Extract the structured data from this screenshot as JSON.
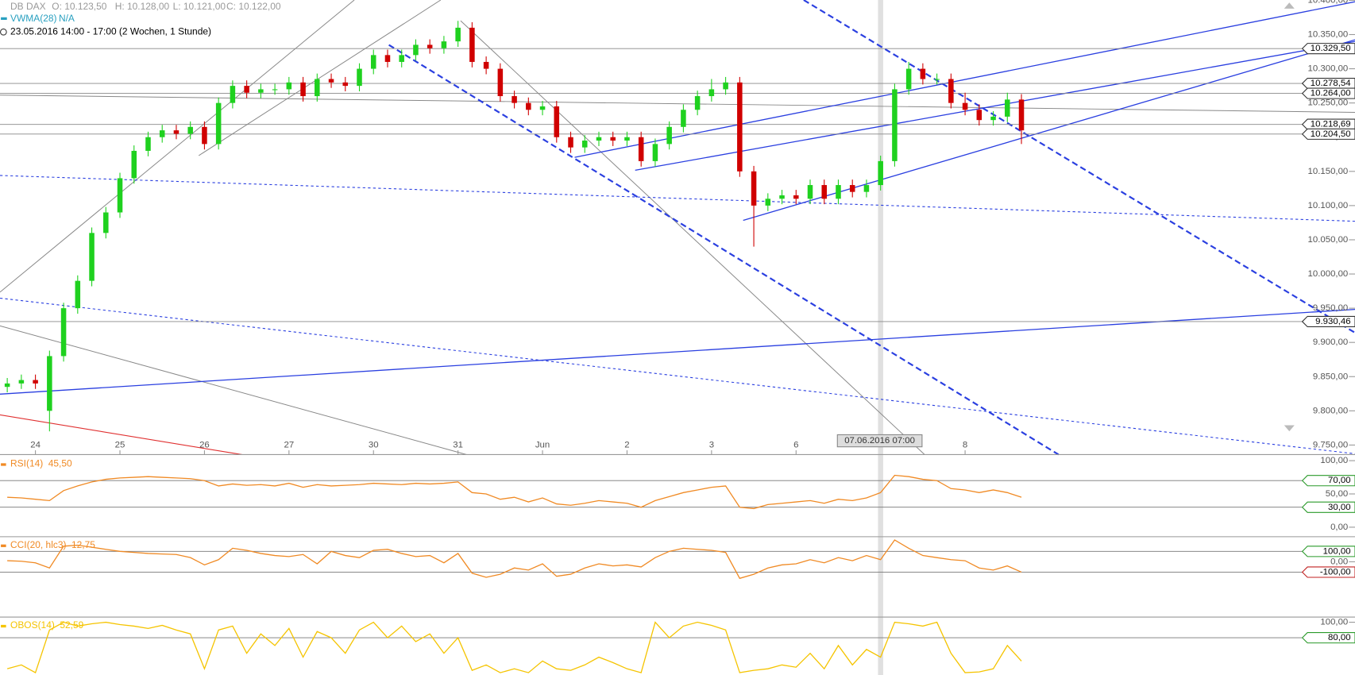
{
  "header": {
    "symbol": "DB DAX",
    "open": "O: 10.123,50",
    "high": "H: 10.128,00",
    "low": "L: 10.121,00",
    "close": "C: 10.122,00",
    "indicator": "VWMA(28)",
    "indicator_value": "N/A",
    "range": "23.05.2016 14:00 - 17:00 (2 Wochen, 1 Stunde)"
  },
  "chart_data": [
    {
      "type": "candlestick",
      "up_color": "#1fd11f",
      "down_color": "#d00000",
      "crosshair_label": "07.06.2016 07:00",
      "categories": [
        null,
        null,
        "24",
        null,
        null,
        null,
        null,
        null,
        "25",
        null,
        null,
        null,
        null,
        null,
        "26",
        null,
        null,
        null,
        null,
        null,
        "27",
        null,
        null,
        null,
        null,
        null,
        "30",
        null,
        null,
        null,
        null,
        null,
        "31",
        null,
        null,
        null,
        null,
        null,
        "Jun",
        null,
        null,
        null,
        null,
        null,
        "2",
        null,
        null,
        null,
        null,
        null,
        "3",
        null,
        null,
        null,
        null,
        null,
        "6",
        null,
        null,
        null,
        null,
        null,
        null,
        null,
        null,
        null,
        null,
        null,
        "8",
        null,
        null,
        null,
        null
      ],
      "open": [
        9835,
        9840,
        9845,
        9800,
        9880,
        9950,
        9990,
        10060,
        10090,
        10140,
        10180,
        10200,
        10210,
        10205,
        10215,
        10190,
        10250,
        10275,
        10265,
        10270,
        10270,
        10280,
        10260,
        10285,
        10280,
        10275,
        10300,
        10320,
        10310,
        10320,
        10335,
        10330,
        10340,
        10360,
        10310,
        10300,
        10260,
        10250,
        10240,
        10245,
        10200,
        10185,
        10195,
        10200,
        10195,
        10200,
        10165,
        10190,
        10215,
        10240,
        10260,
        10270,
        10280,
        10150,
        10100,
        10110,
        10115,
        10110,
        10130,
        10110,
        10130,
        10120,
        10130,
        10165,
        10270,
        10300,
        10285,
        10285,
        10250,
        10240,
        10225,
        10230,
        10255
      ],
      "high": [
        9848,
        9853,
        9853,
        9888,
        9958,
        9998,
        10068,
        10098,
        10148,
        10188,
        10208,
        10218,
        10218,
        10223,
        10223,
        10258,
        10283,
        10283,
        10278,
        10278,
        10288,
        10288,
        10293,
        10293,
        10288,
        10308,
        10328,
        10328,
        10328,
        10343,
        10343,
        10348,
        10370,
        10368,
        10318,
        10308,
        10268,
        10258,
        10253,
        10253,
        10208,
        10203,
        10208,
        10208,
        10208,
        10208,
        10198,
        10223,
        10248,
        10268,
        10285,
        10288,
        10288,
        10158,
        10118,
        10123,
        10123,
        10138,
        10138,
        10138,
        10138,
        10138,
        10173,
        10278,
        10310,
        10308,
        10293,
        10293,
        10265,
        10248,
        10238,
        10265,
        10263
      ],
      "low": [
        9827,
        9832,
        9832,
        9770,
        9872,
        9942,
        9982,
        10052,
        10082,
        10132,
        10172,
        10192,
        10197,
        10197,
        10182,
        10182,
        10242,
        10257,
        10257,
        10262,
        10262,
        10252,
        10252,
        10272,
        10267,
        10267,
        10292,
        10302,
        10302,
        10312,
        10322,
        10322,
        10332,
        10302,
        10292,
        10252,
        10242,
        10232,
        10232,
        10192,
        10177,
        10177,
        10187,
        10187,
        10187,
        10157,
        10157,
        10182,
        10207,
        10232,
        10252,
        10262,
        10142,
        10040,
        10092,
        10102,
        10102,
        10102,
        10102,
        10102,
        10112,
        10112,
        10122,
        10157,
        10262,
        10277,
        10277,
        10242,
        10232,
        10217,
        10217,
        10222,
        10190
      ],
      "close": [
        9840,
        9845,
        9840,
        9880,
        9950,
        9990,
        10060,
        10090,
        10140,
        10180,
        10200,
        10210,
        10205,
        10215,
        10190,
        10250,
        10275,
        10265,
        10270,
        10270,
        10280,
        10260,
        10285,
        10280,
        10275,
        10300,
        10320,
        10310,
        10320,
        10335,
        10330,
        10340,
        10360,
        10310,
        10300,
        10260,
        10250,
        10240,
        10245,
        10200,
        10185,
        10195,
        10200,
        10195,
        10200,
        10165,
        10190,
        10215,
        10240,
        10260,
        10270,
        10280,
        10150,
        10100,
        10110,
        10115,
        10110,
        10130,
        10110,
        10130,
        10120,
        10130,
        10165,
        10270,
        10300,
        10285,
        10285,
        10250,
        10240,
        10225,
        10230,
        10255,
        10210
      ],
      "ylim": [
        9736,
        10400.5
      ],
      "yticks": [
        {
          "value": 10400,
          "label": "10.400,00"
        },
        {
          "value": 10350,
          "label": "10.350,00"
        },
        {
          "value": 10300,
          "label": "10.300,00"
        },
        {
          "value": 10250,
          "label": "10.250,00"
        },
        {
          "value": 10200,
          "label": "10.200,00"
        },
        {
          "value": 10150,
          "label": "10.150,00"
        },
        {
          "value": 10100,
          "label": "10.100,00"
        },
        {
          "value": 10050,
          "label": "10.050,00"
        },
        {
          "value": 10000,
          "label": "10.000,00"
        },
        {
          "value": 9950,
          "label": "9.950,00"
        },
        {
          "value": 9900,
          "label": "9.900,00"
        },
        {
          "value": 9850,
          "label": "9.850,00"
        },
        {
          "value": 9800,
          "label": "9.800,00"
        },
        {
          "value": 9750,
          "label": "9.750,00"
        }
      ],
      "price_levels": [
        {
          "value": 10329.5,
          "label": "10.329,50"
        },
        {
          "value": 10278.54,
          "label": "10.278,54"
        },
        {
          "value": 10264,
          "label": "10.264,00"
        },
        {
          "value": 10218.69,
          "label": "10.218,69"
        },
        {
          "value": 10204.5,
          "label": "10.204,50"
        },
        {
          "value": 9930.46,
          "label": "9.930,46"
        }
      ]
    },
    {
      "type": "line",
      "name": "RSI(14)",
      "current": "45,50",
      "color": "#f08a24",
      "ylim": [
        -13,
        106.5
      ],
      "yticks": [
        {
          "value": 100,
          "label": "100,00"
        },
        {
          "value": 50,
          "label": "50,00"
        },
        {
          "value": 0,
          "label": "0,00"
        }
      ],
      "levels": [
        {
          "value": 70,
          "label": "70,00"
        },
        {
          "value": 30,
          "label": "30,00"
        }
      ],
      "values": [
        45,
        44,
        42,
        40,
        55,
        62,
        68,
        72,
        74,
        75,
        76,
        75,
        74,
        73,
        70,
        62,
        65,
        63,
        64,
        62,
        66,
        60,
        64,
        62,
        63,
        64,
        66,
        65,
        64,
        66,
        65,
        66,
        68,
        52,
        50,
        42,
        45,
        38,
        44,
        35,
        33,
        36,
        40,
        38,
        36,
        30,
        40,
        46,
        52,
        56,
        60,
        62,
        30,
        28,
        34,
        36,
        38,
        40,
        36,
        42,
        40,
        44,
        52,
        78,
        76,
        72,
        70,
        58,
        56,
        52,
        56,
        52,
        45
      ]
    },
    {
      "type": "line",
      "name": "CCI(20, hlc3)",
      "current": "12,75",
      "color": "#f08a24",
      "ylim": [
        -525,
        233
      ],
      "yticks": [
        {
          "value": 0,
          "label": "0,00"
        }
      ],
      "levels": [
        {
          "value": 100,
          "label": "100,00"
        },
        {
          "value": -100,
          "label": "-100,00"
        }
      ],
      "values": [
        10,
        5,
        -10,
        -60,
        150,
        160,
        140,
        120,
        100,
        90,
        80,
        75,
        70,
        40,
        -30,
        20,
        130,
        110,
        80,
        60,
        50,
        70,
        -20,
        100,
        60,
        40,
        110,
        120,
        80,
        50,
        60,
        -10,
        80,
        -110,
        -150,
        -120,
        -60,
        -80,
        -20,
        -140,
        -120,
        -60,
        -20,
        -40,
        -30,
        -50,
        40,
        100,
        130,
        120,
        110,
        90,
        -160,
        -120,
        -60,
        -30,
        -20,
        20,
        -10,
        40,
        10,
        60,
        20,
        210,
        130,
        60,
        40,
        20,
        10,
        -60,
        -80,
        -40,
        -100
      ]
    },
    {
      "type": "line",
      "name": "OBOS(14)",
      "current": "52,59",
      "color": "#f5c400",
      "ylim": [
        32,
        105.5
      ],
      "yticks": [
        {
          "value": 100,
          "label": "100,00"
        }
      ],
      "levels": [
        {
          "value": 80,
          "label": "80,00"
        }
      ],
      "values": [
        40,
        45,
        35,
        90,
        100,
        95,
        98,
        100,
        97,
        95,
        92,
        96,
        90,
        85,
        40,
        90,
        95,
        60,
        85,
        70,
        92,
        55,
        88,
        80,
        60,
        90,
        100,
        80,
        95,
        75,
        85,
        60,
        80,
        38,
        45,
        35,
        40,
        35,
        50,
        40,
        38,
        45,
        55,
        48,
        40,
        35,
        100,
        80,
        95,
        100,
        96,
        90,
        35,
        38,
        40,
        45,
        42,
        60,
        40,
        70,
        45,
        65,
        55,
        100,
        98,
        95,
        100,
        60,
        35,
        36,
        40,
        70,
        50
      ]
    }
  ]
}
